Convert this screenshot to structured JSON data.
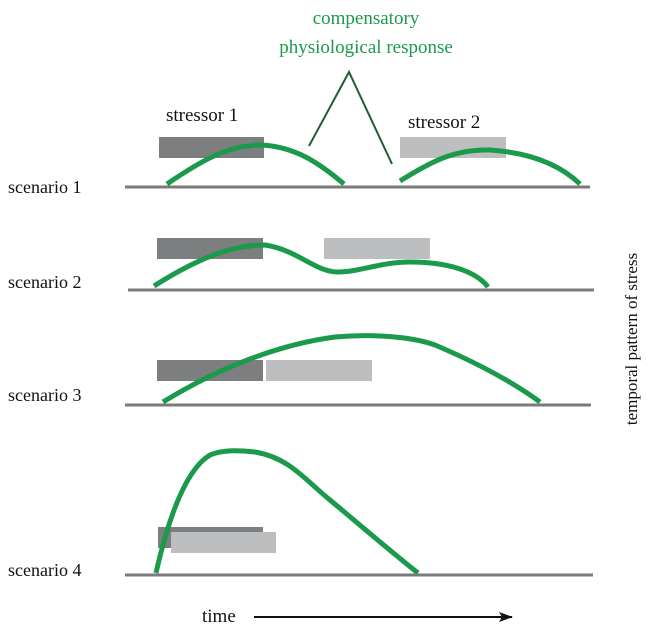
{
  "labels": {
    "response_line1": "compensatory",
    "response_line2": "physiological response",
    "stressor1": "stressor 1",
    "stressor2": "stressor 2",
    "side": "temporal pattern of stress",
    "time": "time"
  },
  "scenarios": [
    {
      "label": "scenario 1"
    },
    {
      "label": "scenario 2"
    },
    {
      "label": "scenario 3"
    },
    {
      "label": "scenario 4"
    }
  ],
  "colors": {
    "response": "#1a9a4a",
    "stressor1": "#7d7e80",
    "stressor2": "#bdbebf",
    "baseline": "#7a7a7a",
    "pointer": "#1f5e34",
    "text": "#111111"
  }
}
